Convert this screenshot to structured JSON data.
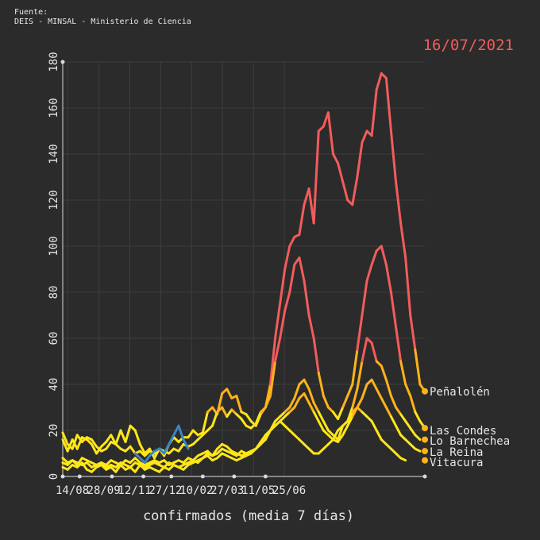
{
  "source": {
    "line1": "Fuente:",
    "line2": "DEIS - MINSAL - Ministerio de Ciencia"
  },
  "date_label": "16/07/2021",
  "colors": {
    "background": "#2b2b2b",
    "grid": "#3e3e3e",
    "text": "#e6e6e6",
    "date": "#f25c5c",
    "red": "#f25c5c",
    "orange": "#ffb31a",
    "yellow": "#ffe619",
    "blue": "#3a85c8"
  },
  "chart_data": {
    "type": "line",
    "title": "",
    "xlabel": "confirmados (media 7 días)",
    "ylabel": "",
    "ylim": [
      0,
      180
    ],
    "yticks": [
      0,
      20,
      40,
      60,
      80,
      100,
      120,
      140,
      160,
      180
    ],
    "xticks": [
      {
        "label": "14/08",
        "week": 1
      },
      {
        "label": "28/09",
        "week": 7.5
      },
      {
        "label": "12/11",
        "week": 13.9
      },
      {
        "label": "27/12",
        "week": 20.3
      },
      {
        "label": "10/02",
        "week": 26.7
      },
      {
        "label": "27/03",
        "week": 33.1
      },
      {
        "label": "11/05",
        "week": 39.5
      },
      {
        "label": "25/06",
        "week": 45.9
      }
    ],
    "grid": true,
    "series": [
      {
        "name": "Peñalolén",
        "color_segments": "warm",
        "values": [
          16,
          11,
          16,
          12,
          17,
          16,
          14,
          10,
          13,
          15,
          18,
          14,
          20,
          15,
          22,
          20,
          14,
          10,
          12,
          8,
          12,
          9,
          14,
          17,
          15,
          17,
          17,
          20,
          18,
          19,
          28,
          30,
          27,
          36,
          38,
          34,
          35,
          28,
          27,
          24,
          22,
          27,
          30,
          40,
          60,
          75,
          90,
          100,
          104,
          105,
          118,
          125,
          110,
          150,
          152,
          158,
          140,
          136,
          128,
          120,
          118,
          130,
          145,
          150,
          148,
          168,
          175,
          173,
          150,
          128,
          110,
          95,
          70,
          55,
          40,
          37
        ]
      },
      {
        "name": "Las Condes",
        "values": [
          19,
          14,
          12,
          18,
          15,
          17,
          16,
          13,
          11,
          12,
          15,
          14,
          12,
          11,
          13,
          10,
          11,
          9,
          11,
          10,
          12,
          11,
          10,
          12,
          11,
          14,
          13,
          14,
          16,
          18,
          20,
          22,
          28,
          30,
          26,
          29,
          27,
          25,
          22,
          21,
          23,
          28,
          30,
          35,
          50,
          60,
          72,
          80,
          92,
          95,
          85,
          70,
          60,
          45,
          35,
          30,
          28,
          25,
          30,
          35,
          40,
          55,
          70,
          85,
          92,
          98,
          100,
          92,
          80,
          65,
          50,
          40,
          35,
          28,
          24,
          21
        ]
      },
      {
        "name": "Lo Barnechea",
        "values": [
          8,
          6,
          7,
          5,
          8,
          7,
          6,
          5,
          6,
          5,
          7,
          6,
          5,
          7,
          6,
          8,
          6,
          5,
          6,
          7,
          6,
          7,
          5,
          6,
          7,
          6,
          8,
          7,
          9,
          10,
          11,
          9,
          10,
          12,
          11,
          10,
          9,
          11,
          10,
          11,
          12,
          14,
          16,
          20,
          24,
          26,
          28,
          30,
          34,
          40,
          42,
          38,
          32,
          28,
          24,
          20,
          18,
          16,
          22,
          24,
          30,
          38,
          50,
          60,
          58,
          50,
          48,
          42,
          35,
          30,
          27,
          24,
          21,
          18,
          16
        ]
      },
      {
        "name": "La Reina",
        "values": [
          6,
          5,
          7,
          6,
          5,
          6,
          4,
          5,
          6,
          4,
          5,
          4,
          6,
          5,
          4,
          6,
          5,
          4,
          5,
          6,
          5,
          4,
          6,
          5,
          4,
          5,
          6,
          7,
          6,
          8,
          10,
          9,
          12,
          14,
          13,
          11,
          10,
          9,
          10,
          11,
          12,
          14,
          18,
          20,
          22,
          24,
          26,
          28,
          30,
          34,
          36,
          32,
          28,
          24,
          20,
          18,
          16,
          15,
          18,
          22,
          26,
          30,
          34,
          40,
          42,
          38,
          34,
          30,
          26,
          22,
          18,
          16,
          14,
          12,
          11
        ]
      },
      {
        "name": "Vitacura",
        "values": [
          4,
          3,
          5,
          4,
          6,
          3,
          2,
          4,
          5,
          3,
          4,
          2,
          5,
          3,
          4,
          2,
          5,
          3,
          4,
          3,
          2,
          4,
          3,
          5,
          4,
          3,
          5,
          6,
          7,
          8,
          9,
          7,
          8,
          10,
          9,
          8,
          7,
          8,
          9,
          10,
          12,
          15,
          18,
          20,
          22,
          24,
          22,
          20,
          18,
          16,
          14,
          12,
          10,
          10,
          12,
          14,
          16,
          20,
          22,
          24,
          28,
          30,
          28,
          26,
          24,
          20,
          16,
          14,
          12,
          10,
          8,
          7
        ]
      },
      {
        "name": "",
        "color": "blue",
        "start": 15,
        "values": [
          10,
          8,
          6,
          9,
          11,
          12,
          10,
          14,
          18,
          22,
          16,
          12
        ]
      }
    ],
    "end_labels": [
      "Peñalolén",
      "Las Condes",
      "Lo Barnechea",
      "La Reina",
      "Vitacura"
    ],
    "end_values": [
      37,
      21,
      16,
      11,
      7
    ]
  }
}
